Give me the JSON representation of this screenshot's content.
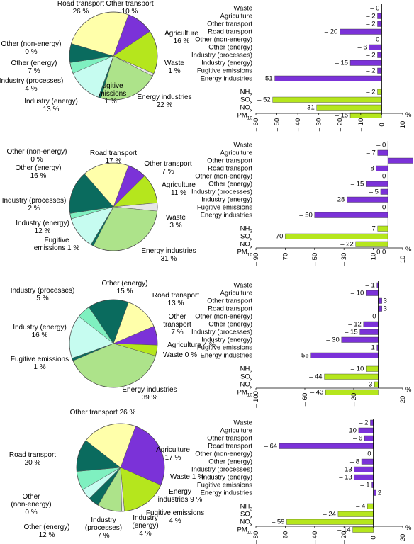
{
  "colors": {
    "purple": "#7B32D8",
    "green": "#B5E61D",
    "dark_teal": "#0A6B5E",
    "mint": "#7FF0C0",
    "light_cyan": "#C6FCF0",
    "light_yellow": "#FFFFAA",
    "light_green": "#ADE38A",
    "grey": "#E6E6E6",
    "white": "#FFFFFF",
    "bar_green": "#B5E61D"
  },
  "chart_data": [
    {
      "type": "pie",
      "slices": [
        {
          "label": "Other transport",
          "value": 10,
          "label_text": "Other transport\n10 %",
          "color": "#7B32D8"
        },
        {
          "label": "Agriculture",
          "value": 16,
          "label_text": "Agriculture\n16 %",
          "color": "#B5E61D"
        },
        {
          "label": "Waste",
          "value": 1,
          "label_text": "Waste\n1 %",
          "color": "#E6E6E6"
        },
        {
          "label": "Energy industries",
          "value": 22,
          "label_text": "Energy industries\n22 %",
          "color": "#ADE38A"
        },
        {
          "label": "Fugitive emissions",
          "value": 1,
          "label_text": "Fugitive\nemissions\n1 %",
          "color": "#0A6B5E"
        },
        {
          "label": "Industry (energy)",
          "value": 13,
          "label_text": "Industry (energy)\n13 %",
          "color": "#C6FCF0"
        },
        {
          "label": "Industry (processes)",
          "value": 4,
          "label_text": "Industry (processes)\n4 %",
          "color": "#7FF0C0"
        },
        {
          "label": "Other (energy)",
          "value": 7,
          "label_text": "Other (energy)\n7 %",
          "color": "#0A6B5E"
        },
        {
          "label": "Other (non-energy)",
          "value": 0,
          "label_text": "Other (non-energy)\n0 %",
          "color": "#FFFFFF"
        },
        {
          "label": "Road transport",
          "value": 26,
          "label_text": "Road transport\n26 %",
          "color": "#FFFFAA"
        }
      ]
    },
    {
      "type": "bar",
      "orientation": "horizontal",
      "categories": [
        "Waste",
        "Agriculture",
        "Other transport",
        "Road transport",
        "Other (non-energy)",
        "Other (energy)",
        "Industry (processes)",
        "Industry (energy)",
        "Fugitive emissions",
        "Energy industries"
      ],
      "values": [
        0,
        -2,
        -2,
        -20,
        0,
        -6,
        -2,
        -15,
        -2,
        -51
      ],
      "value_labels": [
        "– 0",
        "– 2",
        "– 2",
        "– 20",
        "0",
        "– 6",
        "– 2",
        "– 15",
        "– 2",
        "– 51"
      ],
      "pollutants": {
        "categories": [
          "NH3",
          "SOx",
          "NOx",
          "PM10"
        ],
        "values": [
          -2,
          -52,
          -31,
          -15
        ],
        "value_labels": [
          "– 2",
          "– 52",
          "– 31",
          "– 15"
        ]
      },
      "xlim": [
        -60,
        10
      ],
      "ticks": [
        -60,
        -50,
        -40,
        -30,
        -20,
        -10,
        0,
        10
      ],
      "tick_labels": [
        "– 60",
        "– 50",
        "– 40",
        "– 30",
        "– 20",
        "– 10",
        "0",
        "10"
      ],
      "unit": "%"
    },
    {
      "type": "pie",
      "slices": [
        {
          "label": "Other transport",
          "value": 7,
          "label_text": "Other transport\n7 %",
          "color": "#7B32D8"
        },
        {
          "label": "Agriculture",
          "value": 11,
          "label_text": "Agriculture\n11 %",
          "color": "#B5E61D"
        },
        {
          "label": "Waste",
          "value": 3,
          "label_text": "Waste\n3 %",
          "color": "#E6E6E6"
        },
        {
          "label": "Energy industries",
          "value": 31,
          "label_text": "Energy industries\n31 %",
          "color": "#ADE38A"
        },
        {
          "label": "Fugitive emissions",
          "value": 1,
          "label_text": "Fugitive\nemissions 1 %",
          "color": "#0A6B5E"
        },
        {
          "label": "Industry (energy)",
          "value": 12,
          "label_text": "Industry (energy)\n12 %",
          "color": "#C6FCF0"
        },
        {
          "label": "Industry (processes)",
          "value": 2,
          "label_text": "Industry (processes)\n2 %",
          "color": "#7FF0C0"
        },
        {
          "label": "Other (energy)",
          "value": 16,
          "label_text": "Other (energy)\n16 %",
          "color": "#0A6B5E"
        },
        {
          "label": "Other (non-energy)",
          "value": 0,
          "label_text": "Other (non-energy)\n0 %",
          "color": "#FFFFFF"
        },
        {
          "label": "Road transport",
          "value": 17,
          "label_text": "Road transport\n17 %",
          "color": "#FFFFAA"
        }
      ]
    },
    {
      "type": "bar",
      "orientation": "horizontal",
      "categories": [
        "Waste",
        "Agriculture",
        "Other transport",
        "Road transport",
        "Other (non-energy)",
        "Other (energy)",
        "Industry (processes)",
        "Industry (energy)",
        "Fugitive emissions",
        "Energy industries"
      ],
      "values": [
        0,
        -7,
        17,
        -8,
        0,
        -15,
        -5,
        -28,
        0,
        -50
      ],
      "value_labels": [
        "– 0",
        "– 7",
        "17",
        "– 8",
        "0",
        "– 15",
        "– 5",
        "– 28",
        "0",
        "– 50"
      ],
      "pollutants": {
        "categories": [
          "NH3",
          "SOx",
          "NOx",
          "PM10"
        ],
        "values": [
          -7,
          -70,
          -22,
          0
        ],
        "value_labels": [
          "– 7",
          "– 70",
          "– 22",
          "0 0"
        ]
      },
      "xlim": [
        -90,
        10
      ],
      "ticks": [
        -90,
        -70,
        -50,
        -30,
        -10,
        10
      ],
      "tick_labels": [
        "– 90",
        "– 70",
        "– 50",
        "– 30",
        "– 10",
        "10"
      ],
      "unit": "%"
    },
    {
      "type": "pie",
      "slices": [
        {
          "label": "Road transport",
          "value": 13,
          "label_text": "Road transport\n13 %",
          "color": "#FFFFAA"
        },
        {
          "label": "Other transport",
          "value": 7,
          "label_text": "Other\ntransport\n7 %",
          "color": "#7B32D8"
        },
        {
          "label": "Agriculture",
          "value": 4,
          "label_text": "Agriculture 4 %",
          "color": "#B5E61D"
        },
        {
          "label": "Waste",
          "value": 0,
          "label_text": "Waste 0 %",
          "color": "#E6E6E6"
        },
        {
          "label": "Energy industries",
          "value": 39,
          "label_text": "Energy industries\n39 %",
          "color": "#ADE38A"
        },
        {
          "label": "Fugitive emissions",
          "value": 1,
          "label_text": "Fugitive emissions\n1 %",
          "color": "#0A6B5E"
        },
        {
          "label": "Industry (energy)",
          "value": 16,
          "label_text": "Industry (energy)\n16 %",
          "color": "#C6FCF0"
        },
        {
          "label": "Industry (processes)",
          "value": 5,
          "label_text": "Industry (processes)\n5 %",
          "color": "#7FF0C0"
        },
        {
          "label": "Other (energy)",
          "value": 15,
          "label_text": "Other (energy)\n15 %",
          "color": "#0A6B5E"
        }
      ]
    },
    {
      "type": "bar",
      "orientation": "horizontal",
      "categories": [
        "Waste",
        "Agriculture",
        "Other transport",
        "Road transport",
        "Other (non-energy)",
        "Other (energy)",
        "Industry (processes)",
        "Industry (energy)",
        "Fugitive emissions",
        "Energy industries"
      ],
      "values": [
        -1,
        -10,
        3,
        3,
        0,
        -12,
        -15,
        -30,
        -1,
        -55
      ],
      "value_labels": [
        "– 1",
        "– 10",
        "3",
        "3",
        "0",
        "– 12",
        "– 15",
        "– 30",
        "– 1",
        "– 55"
      ],
      "pollutants": {
        "categories": [
          "NH3",
          "SOx",
          "NOx",
          "PM10"
        ],
        "values": [
          -10,
          -44,
          -3,
          -43
        ],
        "value_labels": [
          "– 10",
          "– 44",
          "– 3",
          "– 43"
        ]
      },
      "xlim": [
        -100,
        20
      ],
      "ticks": [
        -100,
        -60,
        -20,
        20
      ],
      "tick_labels": [
        "– 100",
        "– 60",
        "– 20",
        "20"
      ],
      "unit": "%"
    },
    {
      "type": "pie",
      "slices": [
        {
          "label": "Other transport",
          "value": 26,
          "label_text": "Other transport 26 %",
          "color": "#7B32D8"
        },
        {
          "label": "Agriculture",
          "value": 17,
          "label_text": "Agriculture\n17 %",
          "color": "#B5E61D"
        },
        {
          "label": "Waste",
          "value": 1,
          "label_text": "Waste 1 %",
          "color": "#E6E6E6"
        },
        {
          "label": "Energy industries",
          "value": 9,
          "label_text": "Energy\nindustries 9 %",
          "color": "#ADE38A"
        },
        {
          "label": "Fugitive emissions",
          "value": 4,
          "label_text": "Fugitive emissions\n4 %",
          "color": "#0A6B5E"
        },
        {
          "label": "Industry (energy)",
          "value": 4,
          "label_text": "Industry\n(energy)\n4 %",
          "color": "#C6FCF0"
        },
        {
          "label": "Industry (processes)",
          "value": 7,
          "label_text": "Industry\n(processes)\n7 %",
          "color": "#7FF0C0"
        },
        {
          "label": "Other (energy)",
          "value": 12,
          "label_text": "Other (energy)\n12 %",
          "color": "#0A6B5E"
        },
        {
          "label": "Other (non-energy)",
          "value": 0,
          "label_text": "Other\n(non-energy)\n0 %",
          "color": "#FFFFFF"
        },
        {
          "label": "Road transport",
          "value": 20,
          "label_text": "Road transport\n20 %",
          "color": "#FFFFAA"
        }
      ]
    },
    {
      "type": "bar",
      "orientation": "horizontal",
      "categories": [
        "Waste",
        "Agriculture",
        "Other transport",
        "Road transport",
        "Other (non-energy)",
        "Other (energy)",
        "Industry (processes)",
        "Industry (energy)",
        "Fugitive emissions",
        "Energy industries"
      ],
      "values": [
        -2,
        -10,
        -6,
        -64,
        0,
        -8,
        -13,
        -13,
        -1,
        2
      ],
      "value_labels": [
        "– 2",
        "– 10",
        "– 6",
        "– 64",
        "0",
        "– 8",
        "– 13",
        "– 13",
        "– 1",
        "2"
      ],
      "pollutants": {
        "categories": [
          "NH3",
          "SOx",
          "NOx",
          "PM10"
        ],
        "values": [
          -4,
          -24,
          -59,
          -14
        ],
        "value_labels": [
          "– 4",
          "– 24",
          "– 59",
          "– 14"
        ]
      },
      "xlim": [
        -80,
        20
      ],
      "ticks": [
        -80,
        -60,
        -40,
        -20,
        0,
        20
      ],
      "tick_labels": [
        "– 80",
        "– 60",
        "– 40",
        "– 20",
        "0",
        "20"
      ],
      "unit": "%"
    }
  ]
}
